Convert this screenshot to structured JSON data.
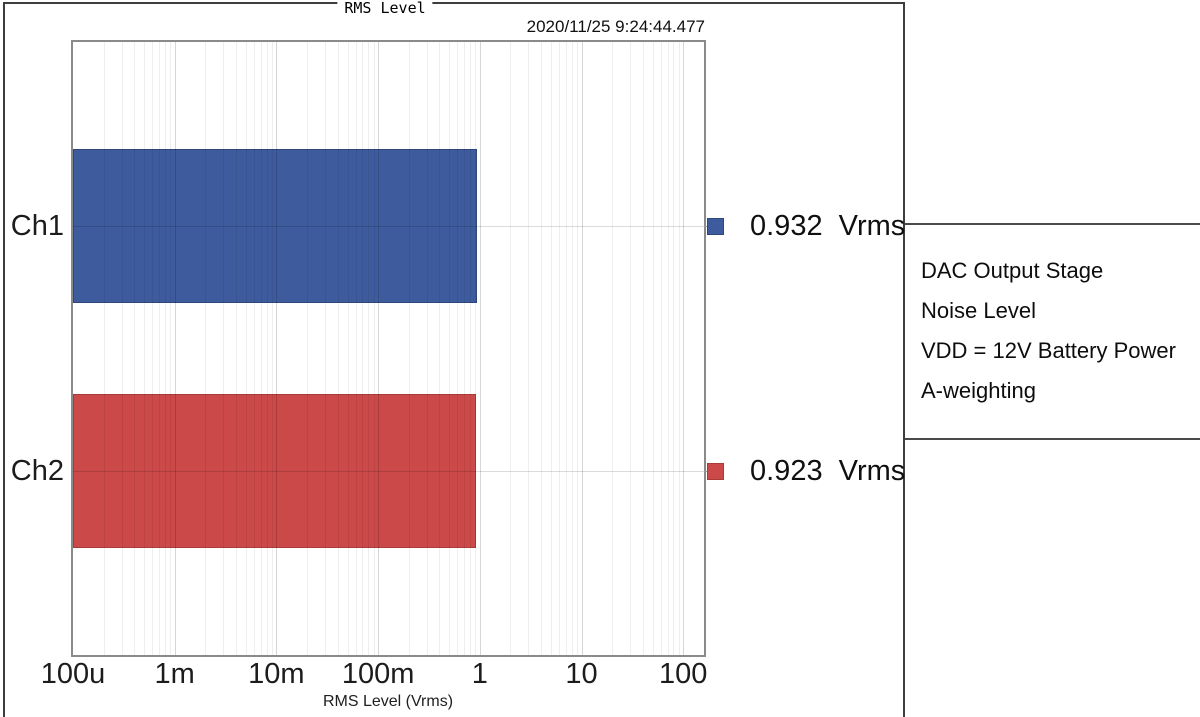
{
  "header": {
    "title": "RMS Level",
    "timestamp": "2020/11/25 9:24:44.477"
  },
  "chart_data": {
    "type": "bar",
    "orientation": "horizontal",
    "title": "RMS Level",
    "xlabel": "RMS Level (Vrms)",
    "x_scale": "log",
    "xlim": [
      0.0001,
      160
    ],
    "grid": true,
    "categories": [
      "Ch1",
      "Ch2"
    ],
    "values": [
      0.932,
      0.923
    ],
    "unit": "Vrms",
    "x_ticks": [
      {
        "value": 0.0001,
        "label": "100u"
      },
      {
        "value": 0.001,
        "label": "1m"
      },
      {
        "value": 0.01,
        "label": "10m"
      },
      {
        "value": 0.1,
        "label": "100m"
      },
      {
        "value": 1,
        "label": "1"
      },
      {
        "value": 10,
        "label": "10"
      },
      {
        "value": 100,
        "label": "100"
      }
    ],
    "bar_colors": [
      "#3E5C9D",
      "#CB4948"
    ],
    "bar_border_colors": [
      "#2E477C",
      "#A93B3B"
    ]
  },
  "legend": [
    {
      "color": "#3E5C9D",
      "border": "#2E477C",
      "display": "0.932  Vrms"
    },
    {
      "color": "#CB4948",
      "border": "#A93B3B",
      "display": "0.923  Vrms"
    }
  ],
  "annotation": {
    "lines": [
      "DAC Output Stage",
      "Noise Level",
      "VDD = 12V Battery Power",
      "A-weighting"
    ]
  }
}
